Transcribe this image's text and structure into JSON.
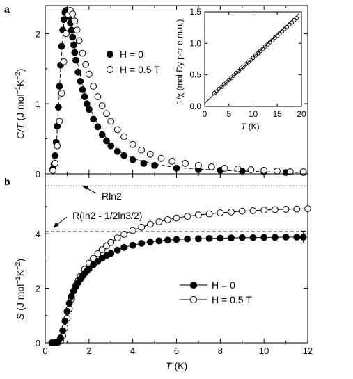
{
  "chart_data": [
    {
      "panel": "a",
      "type": "scatter",
      "ylabel_parts": [
        "C/T",
        " (J mol",
        "−1",
        "K",
        "−2",
        ")"
      ],
      "xlim": [
        0,
        12
      ],
      "ylim": [
        0,
        2.4
      ],
      "yticks": [
        0,
        1,
        2
      ],
      "legend_position": "upper-right",
      "series": [
        {
          "name": "H = 0",
          "marker": "filled-circle",
          "x": [
            0.35,
            0.4,
            0.45,
            0.5,
            0.55,
            0.6,
            0.65,
            0.7,
            0.75,
            0.8,
            0.85,
            0.9,
            0.95,
            1.0,
            1.05,
            1.1,
            1.15,
            1.2,
            1.25,
            1.3,
            1.35,
            1.4,
            1.5,
            1.6,
            1.7,
            1.8,
            1.9,
            2.0,
            2.2,
            2.4,
            2.6,
            2.8,
            3.0,
            3.3,
            3.6,
            4.0,
            4.5,
            5.0,
            6.0,
            7.0,
            8.0,
            9.0,
            10.0,
            11.0,
            11.8
          ],
          "y": [
            0.07,
            0.14,
            0.26,
            0.45,
            0.68,
            0.95,
            1.25,
            1.55,
            1.82,
            2.05,
            2.2,
            2.3,
            2.33,
            2.33,
            2.3,
            2.24,
            2.15,
            2.05,
            1.95,
            1.84,
            1.73,
            1.62,
            1.45,
            1.32,
            1.2,
            1.1,
            1.0,
            0.92,
            0.78,
            0.67,
            0.56,
            0.47,
            0.4,
            0.32,
            0.26,
            0.2,
            0.15,
            0.12,
            0.08,
            0.06,
            0.05,
            0.04,
            0.03,
            0.02,
            0.02
          ]
        },
        {
          "name": "H = 0.5 T",
          "marker": "open-circle",
          "x": [
            0.35,
            0.45,
            0.55,
            0.65,
            0.75,
            0.85,
            0.95,
            1.05,
            1.15,
            1.25,
            1.35,
            1.45,
            1.55,
            1.7,
            1.85,
            2.0,
            2.2,
            2.4,
            2.6,
            2.8,
            3.0,
            3.3,
            3.6,
            4.0,
            4.4,
            4.8,
            5.3,
            5.8,
            6.4,
            7.0,
            7.6,
            8.2,
            8.8,
            9.4,
            10.0,
            10.6,
            11.2,
            11.8
          ],
          "y": [
            0.05,
            0.15,
            0.4,
            0.75,
            1.15,
            1.6,
            2.0,
            2.27,
            2.33,
            2.28,
            2.18,
            2.05,
            1.9,
            1.72,
            1.56,
            1.42,
            1.25,
            1.1,
            0.97,
            0.86,
            0.75,
            0.63,
            0.53,
            0.42,
            0.34,
            0.28,
            0.22,
            0.18,
            0.15,
            0.12,
            0.1,
            0.08,
            0.07,
            0.06,
            0.05,
            0.04,
            0.03,
            0.03
          ]
        }
      ],
      "fit_line": {
        "style": "dashed",
        "x": [
          0.3,
          0.5,
          0.7,
          0.85,
          0.95,
          1.05,
          1.15,
          1.3,
          1.5,
          1.75,
          2.0,
          2.5,
          3.0,
          3.5,
          4.0,
          5.0,
          6.0,
          7.0,
          8.0,
          9.0,
          10.0,
          11.0,
          11.8
        ],
        "y": [
          0.03,
          0.35,
          1.5,
          2.15,
          2.33,
          2.32,
          2.2,
          1.9,
          1.55,
          1.22,
          0.96,
          0.64,
          0.42,
          0.3,
          0.22,
          0.14,
          0.09,
          0.07,
          0.05,
          0.04,
          0.03,
          0.02,
          0.02
        ]
      },
      "inset": {
        "type": "scatter",
        "xlabel_parts": [
          "T",
          " (K)"
        ],
        "ylabel_parts": [
          "1/χ",
          " (mol Dy per e.m.u.)"
        ],
        "xlim": [
          0,
          20
        ],
        "ylim": [
          0,
          1.5
        ],
        "xticks": [
          0,
          5,
          10,
          15,
          20
        ],
        "yticks": [
          0.0,
          0.5,
          1.0,
          1.5
        ],
        "ytick_labels": [
          "0.0",
          "0.5",
          "1.0",
          "1.5"
        ],
        "points": {
          "x": [
            2,
            2.5,
            3,
            3.5,
            4,
            4.5,
            5,
            5.5,
            6,
            6.5,
            7,
            7.5,
            8,
            8.5,
            9,
            9.5,
            10,
            10.5,
            11,
            11.5,
            12,
            12.5,
            13,
            13.5,
            14,
            14.5,
            15,
            15.5,
            16,
            16.5,
            17,
            17.5,
            18,
            18.5,
            19
          ],
          "y": [
            0.21,
            0.24,
            0.28,
            0.31,
            0.35,
            0.38,
            0.42,
            0.45,
            0.49,
            0.53,
            0.56,
            0.6,
            0.63,
            0.67,
            0.7,
            0.74,
            0.77,
            0.81,
            0.84,
            0.88,
            0.91,
            0.95,
            0.98,
            1.02,
            1.05,
            1.09,
            1.12,
            1.16,
            1.19,
            1.23,
            1.26,
            1.3,
            1.33,
            1.37,
            1.4
          ]
        },
        "fit_line": {
          "x": [
            0,
            19.5
          ],
          "y": [
            0.05,
            1.47
          ]
        }
      }
    },
    {
      "panel": "b",
      "type": "line",
      "ylabel_parts": [
        "S",
        " (J mol",
        "−1",
        "K",
        "−2",
        ")"
      ],
      "xlabel_parts": [
        "T",
        " (K)"
      ],
      "xlim": [
        0,
        12
      ],
      "ylim": [
        0,
        6.2
      ],
      "xticks": [
        0,
        2,
        4,
        6,
        8,
        10,
        12
      ],
      "yticks": [
        0,
        2,
        4
      ],
      "legend_position": "lower-right",
      "series": [
        {
          "name": "H = 0",
          "marker": "filled-circle",
          "x": [
            0.3,
            0.4,
            0.5,
            0.6,
            0.7,
            0.8,
            0.9,
            1.0,
            1.1,
            1.2,
            1.3,
            1.4,
            1.5,
            1.6,
            1.7,
            1.8,
            1.9,
            2.0,
            2.2,
            2.4,
            2.6,
            2.8,
            3.0,
            3.3,
            3.6,
            4.0,
            4.4,
            4.8,
            5.2,
            5.6,
            6.0,
            6.5,
            7.0,
            7.5,
            8.0,
            8.5,
            9.0,
            9.5,
            10.0,
            10.5,
            11.0,
            11.5,
            11.8
          ],
          "y": [
            0.0,
            0.0,
            0.01,
            0.05,
            0.18,
            0.45,
            0.8,
            1.15,
            1.45,
            1.7,
            1.9,
            2.06,
            2.2,
            2.33,
            2.45,
            2.55,
            2.64,
            2.72,
            2.87,
            2.99,
            3.1,
            3.2,
            3.28,
            3.4,
            3.5,
            3.58,
            3.65,
            3.7,
            3.74,
            3.77,
            3.79,
            3.81,
            3.82,
            3.83,
            3.84,
            3.85,
            3.86,
            3.86,
            3.87,
            3.87,
            3.88,
            3.88,
            3.88
          ]
        },
        {
          "name": "H = 0.5 T",
          "marker": "open-circle",
          "x": [
            0.3,
            0.4,
            0.5,
            0.6,
            0.7,
            0.8,
            0.9,
            1.0,
            1.1,
            1.2,
            1.3,
            1.4,
            1.5,
            1.6,
            1.8,
            2.0,
            2.2,
            2.4,
            2.6,
            2.8,
            3.0,
            3.3,
            3.6,
            4.0,
            4.4,
            4.8,
            5.2,
            5.6,
            6.0,
            6.5,
            7.0,
            7.5,
            8.0,
            8.5,
            9.0,
            9.5,
            10.0,
            10.5,
            11.0,
            11.5,
            12.0
          ],
          "y": [
            0.0,
            0.0,
            0.0,
            0.02,
            0.08,
            0.25,
            0.55,
            0.9,
            1.25,
            1.6,
            1.9,
            2.1,
            2.28,
            2.44,
            2.7,
            2.92,
            3.1,
            3.27,
            3.42,
            3.56,
            3.68,
            3.85,
            3.98,
            4.12,
            4.24,
            4.35,
            4.44,
            4.52,
            4.58,
            4.64,
            4.69,
            4.73,
            4.77,
            4.8,
            4.83,
            4.85,
            4.87,
            4.89,
            4.9,
            4.91,
            4.92
          ]
        }
      ],
      "reference_lines": [
        {
          "label": "Rln2",
          "value": 5.76,
          "style": "dotted"
        },
        {
          "label": "R(ln2 - 1/2ln3/2)",
          "value": 4.08,
          "style": "dashed"
        }
      ],
      "error_bar": {
        "x": 11.8,
        "y": 3.88,
        "low": 3.66,
        "high": 4.1
      }
    }
  ]
}
